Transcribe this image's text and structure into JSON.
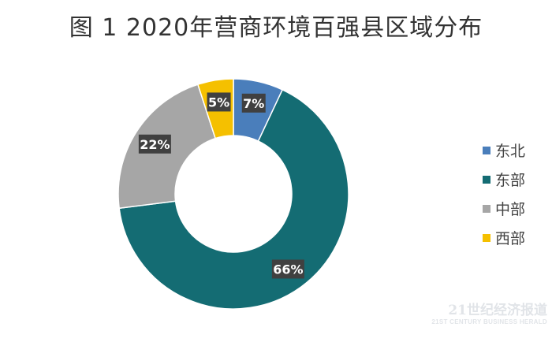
{
  "chart_data": {
    "type": "pie",
    "title": "图 1 2020年营商环境百强县区域分布",
    "categories": [
      "东北",
      "东部",
      "中部",
      "西部"
    ],
    "values": [
      7,
      66,
      22,
      5
    ],
    "value_labels": [
      "7%",
      "66%",
      "22%",
      "5%"
    ],
    "colors": [
      "#4a7ebb",
      "#146c73",
      "#a6a6a6",
      "#f5c000"
    ],
    "donut": true,
    "legend_position": "right"
  },
  "watermark": {
    "title": "21世纪经济报道",
    "subtitle": "21ST CENTURY BUSINESS HERALD"
  }
}
